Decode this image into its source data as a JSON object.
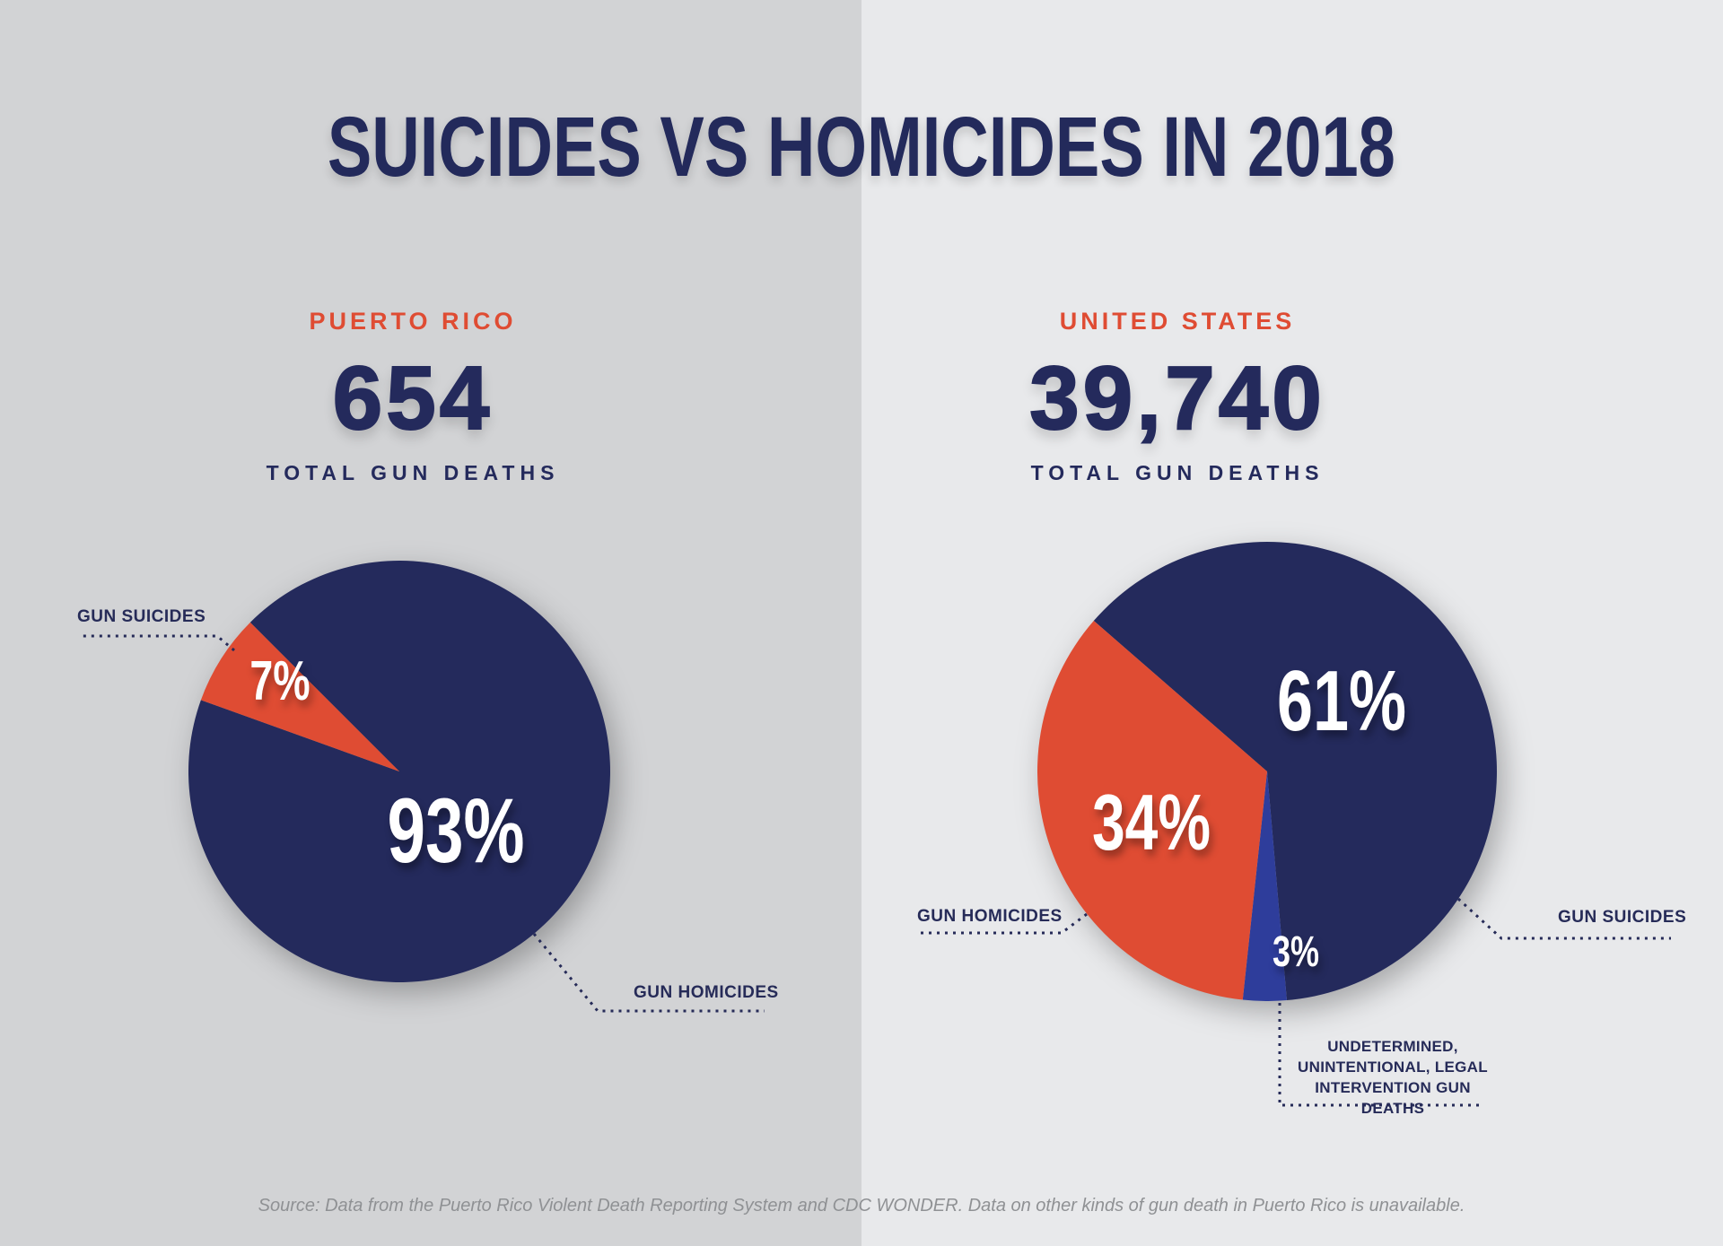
{
  "title": "SUICIDES VS HOMICIDES IN 2018",
  "source_note": "Source: Data from the Puerto Rico Violent Death Reporting System and CDC WONDER. Data on other kinds of gun death in Puerto Rico is unavailable.",
  "colors": {
    "navy": "#242a5c",
    "orange": "#df4c33",
    "blue": "#2e3d9b",
    "bg_left": "#d2d3d5",
    "bg_right": "#e8e9eb",
    "source_gray": "#8f9194"
  },
  "annotations": {
    "right_other_lines": [
      "UNDETERMINED,",
      "UNINTENTIONAL, LEGAL",
      "INTERVENTION GUN DEATHS"
    ]
  },
  "chart_data": [
    {
      "type": "pie",
      "title": "PUERTO RICO",
      "total_display": "654",
      "total_label": "TOTAL GUN DEATHS",
      "start_angle_deg": 315,
      "legend_position": "callouts",
      "slices": [
        {
          "label": "GUN HOMICIDES",
          "value": 93,
          "pct_label": "93%",
          "color": "#242a5c"
        },
        {
          "label": "GUN SUICIDES",
          "value": 7,
          "pct_label": "7%",
          "color": "#df4c33"
        }
      ]
    },
    {
      "type": "pie",
      "title": "UNITED STATES",
      "total_display": "39,740",
      "total_label": "TOTAL GUN DEATHS",
      "start_angle_deg": 311,
      "legend_position": "callouts",
      "slices": [
        {
          "label": "GUN SUICIDES",
          "value": 61,
          "pct_label": "61%",
          "color": "#242a5c"
        },
        {
          "label": "UNDETERMINED, UNINTENTIONAL, LEGAL INTERVENTION GUN DEATHS",
          "value": 3,
          "pct_label": "3%",
          "color": "#2e3d9b"
        },
        {
          "label": "GUN HOMICIDES",
          "value": 34,
          "pct_label": "34%",
          "color": "#df4c33"
        }
      ]
    }
  ]
}
